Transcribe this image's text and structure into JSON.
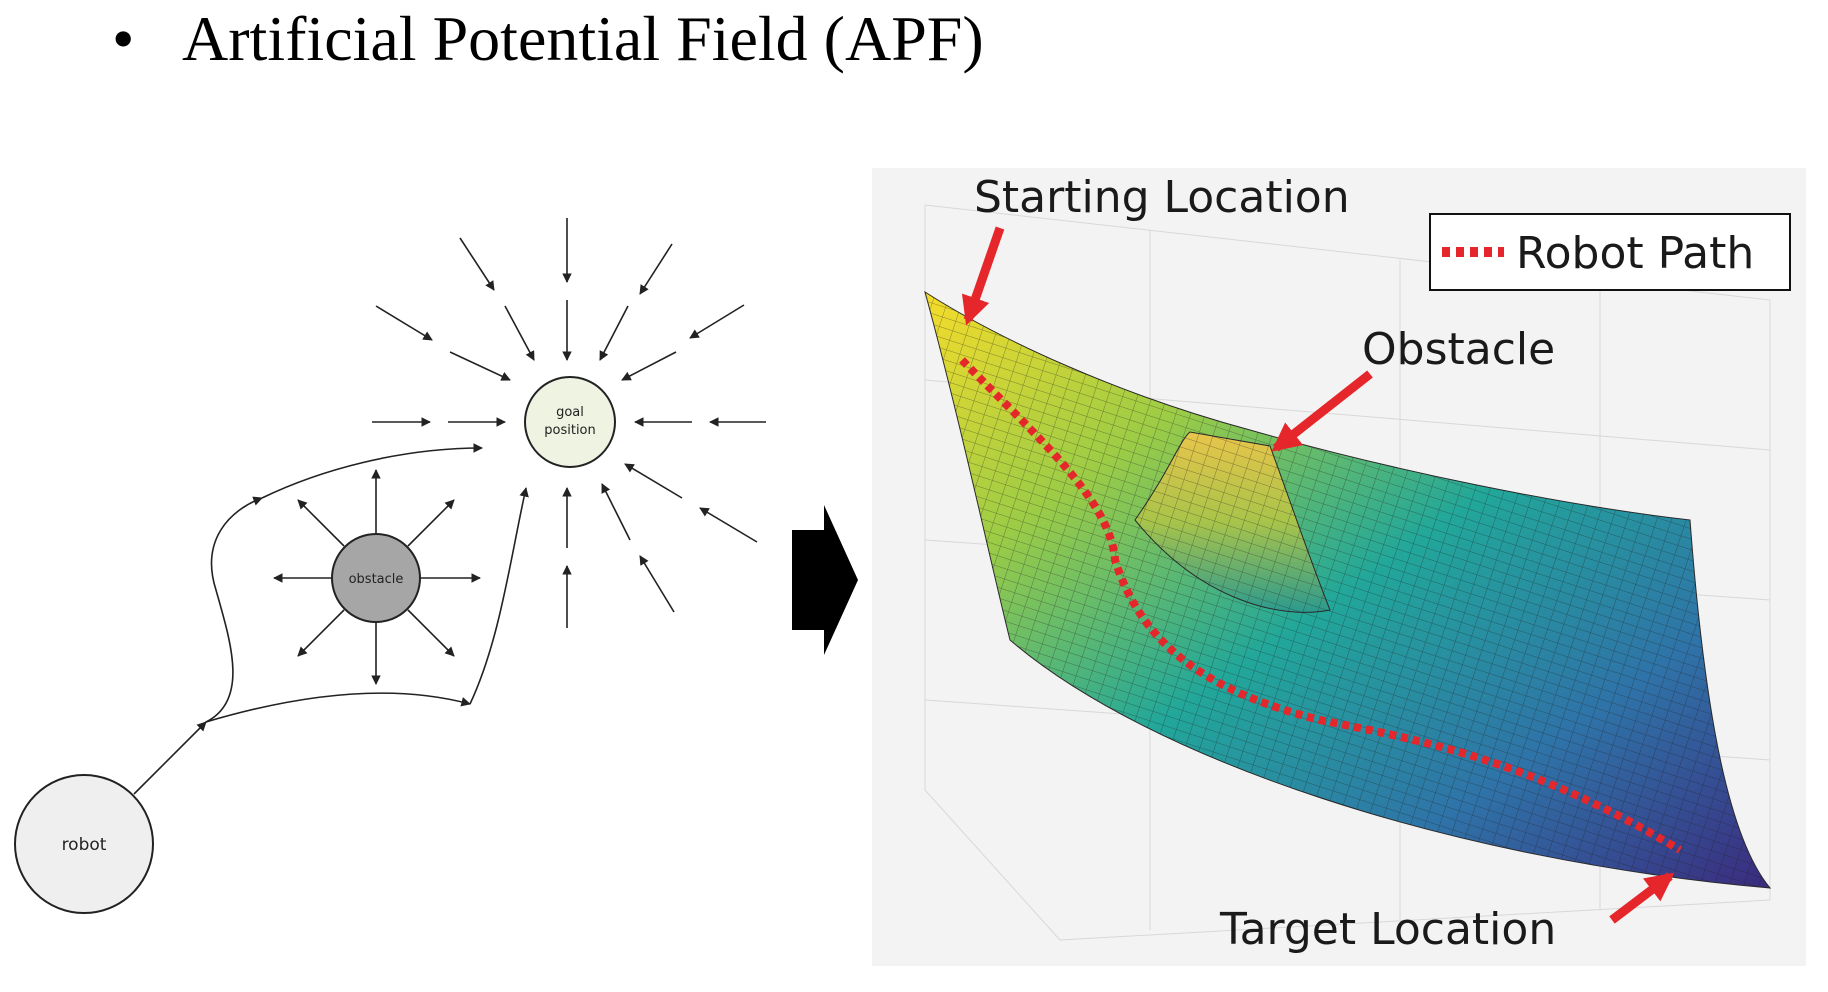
{
  "slide": {
    "bullet": "•",
    "title": "Artificial Potential Field (APF)"
  },
  "left_diagram": {
    "robot_label": "robot",
    "obstacle_label": "obstacle",
    "goal_label_line1": "goal",
    "goal_label_line2": "position",
    "colors": {
      "robot_fill": "#efefef",
      "obstacle_fill": "#a6a6a6",
      "goal_fill": "#eef3e2",
      "stroke": "#222222"
    }
  },
  "right_figure": {
    "starting_label": "Starting Location",
    "obstacle_label": "Obstacle",
    "target_label": "Target Location",
    "legend_label": "Robot Path",
    "colors": {
      "arrow_red": "#e5262a",
      "path_red": "#e5262a",
      "surface_top": "#f2d72a",
      "surface_mid": "#2aa39a",
      "surface_low": "#3a2f8a",
      "background": "#f2f2f2"
    }
  },
  "transition_arrow": {
    "color": "#000000"
  }
}
